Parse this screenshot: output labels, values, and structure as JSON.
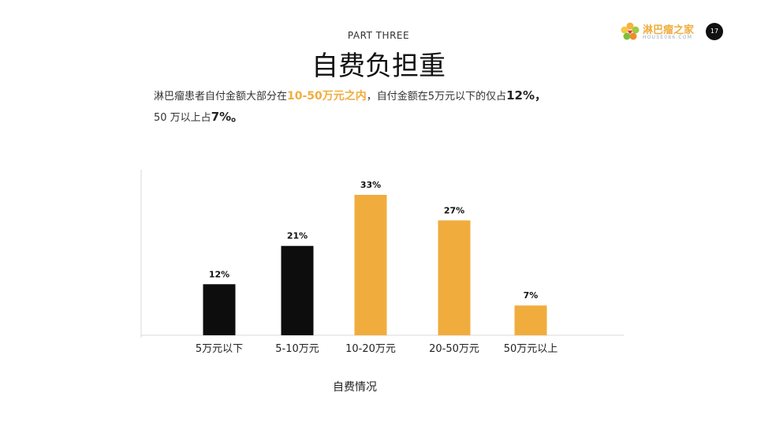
{
  "header": {
    "part": "PART THREE",
    "title": "自费负担重"
  },
  "logo": {
    "name": "淋巴瘤之家",
    "site": "HOUSE086.COM"
  },
  "page_number": "17",
  "description": {
    "line1_a": "淋巴瘤患者自付金额大部分在",
    "line1_highlight": "10-50万元之内",
    "line1_b": "，自付金额在5万元以下的仅占",
    "line1_bold": "12%，",
    "line2_a": "50 万以上占",
    "line2_bold": "7%。"
  },
  "colors": {
    "black": "#0d0d0d",
    "orange": "#f0ad3e",
    "axis": "#d9d9d9"
  },
  "chart_data": {
    "type": "bar",
    "categories": [
      "5万元以下",
      "5-10万元",
      "10-20万元",
      "20-50万元",
      "50万元以上"
    ],
    "values": [
      12,
      21,
      33,
      27,
      7
    ],
    "value_labels": [
      "12%",
      "21%",
      "33%",
      "27%",
      "7%"
    ],
    "bar_colors": [
      "#0d0d0d",
      "#0d0d0d",
      "#f0ad3e",
      "#f0ad3e",
      "#f0ad3e"
    ],
    "xlabel": "自费情况",
    "ylabel": "",
    "ylim": [
      0,
      33
    ],
    "grid": false,
    "legend": "none"
  }
}
